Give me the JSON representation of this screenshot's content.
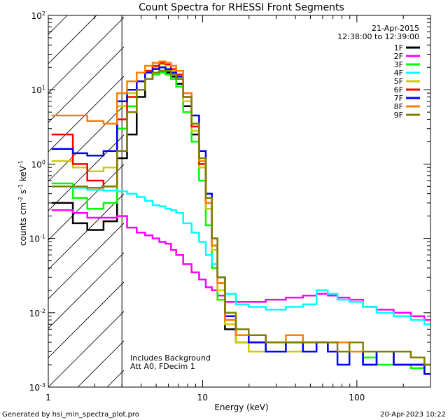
{
  "chart_data": {
    "type": "line",
    "title": "Count Spectra for RHESSI Front Segments",
    "xlabel": "Energy (keV)",
    "ylabel_parts": [
      "counts cm",
      "-2",
      " s",
      "-1",
      " keV",
      "-1"
    ],
    "xscale": "log",
    "yscale": "log",
    "xlim": [
      1,
      300
    ],
    "ylim": [
      0.001,
      100
    ],
    "x_ticks": [
      {
        "value": 1,
        "label": "1"
      },
      {
        "value": 10,
        "label": "10"
      },
      {
        "value": 100,
        "label": "100"
      }
    ],
    "y_ticks": [
      {
        "value": 0.001,
        "base": "10",
        "exp": "-3"
      },
      {
        "value": 0.01,
        "base": "10",
        "exp": "-2"
      },
      {
        "value": 0.1,
        "base": "10",
        "exp": "-1"
      },
      {
        "value": 1,
        "base": "10",
        "exp": "0"
      },
      {
        "value": 10,
        "base": "10",
        "exp": "1"
      },
      {
        "value": 100,
        "base": "10",
        "exp": "2"
      }
    ],
    "date": "21-Apr-2015",
    "time_range": "12:38:00 to 12:39:00",
    "excluded_region_max_keV": 3,
    "annotations": [
      "Includes Background",
      "Att A0, FDecim 1"
    ],
    "footer_left": "Generated by hsi_min_spectra_plot.pro",
    "footer_right": "20-Apr-2023 10:22",
    "x": [
      1.3,
      1.6,
      2.0,
      2.6,
      3.0,
      3.5,
      4.0,
      4.5,
      5.0,
      5.5,
      6.0,
      6.5,
      7.0,
      8.0,
      9.0,
      10.0,
      11.0,
      12.0,
      13.0,
      15.0,
      18.0,
      22.0,
      30.0,
      40.0,
      50.0,
      60.0,
      70.0,
      80.0,
      100.0,
      120.0,
      150.0,
      200.0,
      250.0,
      300.0
    ],
    "series": [
      {
        "name": "1F",
        "color": "#000000",
        "values": [
          0.3,
          0.16,
          0.13,
          0.17,
          1.2,
          2.5,
          8,
          14,
          17,
          18,
          17,
          15,
          12,
          6,
          2.5,
          0.9,
          0.25,
          0.08,
          0.02,
          0.006,
          0.004,
          0.004,
          0.003,
          0.003,
          0.003,
          0.004,
          0.003,
          0.003,
          0.003,
          0.002,
          0.003,
          0.002,
          0.002,
          0.0015
        ]
      },
      {
        "name": "2F",
        "color": "#ff00ff",
        "values": [
          0.24,
          0.22,
          0.19,
          0.19,
          0.2,
          0.14,
          0.12,
          0.11,
          0.1,
          0.09,
          0.085,
          0.07,
          0.06,
          0.045,
          0.035,
          0.028,
          0.022,
          0.02,
          0.017,
          0.014,
          0.014,
          0.014,
          0.015,
          0.016,
          0.017,
          0.018,
          0.017,
          0.016,
          0.015,
          0.012,
          0.011,
          0.01,
          0.009,
          0.008
        ]
      },
      {
        "name": "3F",
        "color": "#00ff00",
        "values": [
          0.55,
          0.35,
          0.25,
          0.3,
          3,
          6,
          10,
          14,
          16,
          17,
          16,
          14,
          11,
          5,
          2,
          0.6,
          0.15,
          0.04,
          0.015,
          0.007,
          0.005,
          0.004,
          0.003,
          0.004,
          0.003,
          0.004,
          0.003,
          0.003,
          0.003,
          0.0025,
          0.002,
          0.002,
          0.0018,
          0.0015
        ]
      },
      {
        "name": "4F",
        "color": "#00ffff",
        "values": [
          0.5,
          0.48,
          0.45,
          0.44,
          0.43,
          0.4,
          0.36,
          0.32,
          0.28,
          0.27,
          0.25,
          0.24,
          0.22,
          0.16,
          0.12,
          0.09,
          0.06,
          0.045,
          0.03,
          0.018,
          0.013,
          0.012,
          0.011,
          0.012,
          0.013,
          0.02,
          0.018,
          0.015,
          0.014,
          0.012,
          0.01,
          0.009,
          0.008,
          0.007
        ]
      },
      {
        "name": "5F",
        "color": "#cccc00",
        "values": [
          1.1,
          0.9,
          0.8,
          0.9,
          6,
          9,
          13,
          17,
          20,
          22,
          21,
          18,
          15,
          7,
          2.8,
          0.9,
          0.25,
          0.07,
          0.02,
          0.007,
          0.004,
          0.003,
          0.004,
          0.003,
          0.003,
          0.004,
          0.003,
          0.003,
          0.003,
          0.002,
          0.003,
          0.002,
          0.002,
          0.0015
        ]
      },
      {
        "name": "6F",
        "color": "#ff0000",
        "values": [
          2.5,
          1.0,
          0.6,
          0.5,
          4,
          8,
          13,
          18,
          21,
          23,
          22,
          19,
          16,
          8,
          3.2,
          1.0,
          0.3,
          0.08,
          0.025,
          0.008,
          0.005,
          0.004,
          0.004,
          0.004,
          0.004,
          0.004,
          0.003,
          0.003,
          0.003,
          0.003,
          0.003,
          0.002,
          0.002,
          0.002
        ]
      },
      {
        "name": "7F",
        "color": "#0000ff",
        "values": [
          1.6,
          1.4,
          1.3,
          1.5,
          7,
          10,
          13,
          17,
          19,
          20,
          19,
          17,
          15,
          9,
          4.5,
          1.5,
          0.4,
          0.1,
          0.03,
          0.009,
          0.005,
          0.004,
          0.003,
          0.004,
          0.003,
          0.004,
          0.003,
          0.002,
          0.003,
          0.002,
          0.003,
          0.002,
          0.002,
          0.0015
        ]
      },
      {
        "name": "8F",
        "color": "#ff8000",
        "values": [
          4.5,
          4.5,
          3.8,
          3.5,
          9,
          13,
          17,
          21,
          23,
          24,
          23,
          21,
          18,
          9,
          3.5,
          1.1,
          0.3,
          0.08,
          0.025,
          0.008,
          0.005,
          0.005,
          0.004,
          0.005,
          0.004,
          0.004,
          0.004,
          0.004,
          0.003,
          0.003,
          0.003,
          0.003,
          0.0025,
          0.002
        ]
      },
      {
        "name": "9F",
        "color": "#808000",
        "values": [
          0.5,
          0.5,
          0.48,
          0.5,
          1.5,
          5,
          10,
          14,
          17,
          18,
          18,
          16,
          14,
          8,
          3.5,
          1.2,
          0.35,
          0.1,
          0.03,
          0.01,
          0.006,
          0.005,
          0.004,
          0.004,
          0.004,
          0.004,
          0.004,
          0.003,
          0.004,
          0.003,
          0.003,
          0.003,
          0.0025,
          0.002
        ]
      }
    ]
  }
}
